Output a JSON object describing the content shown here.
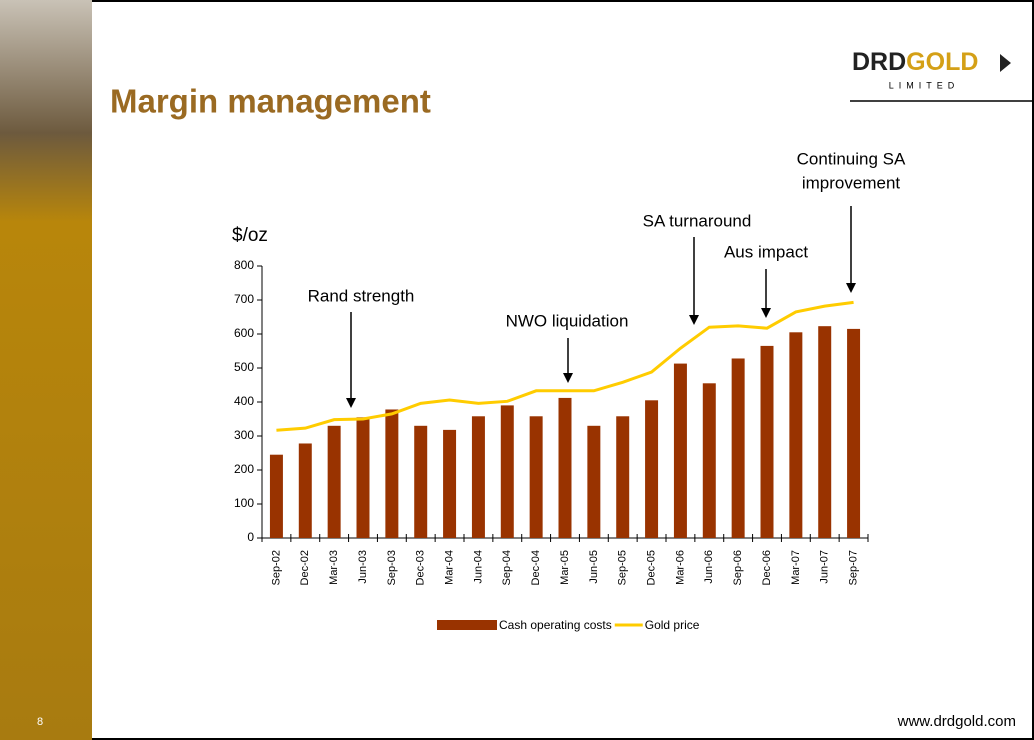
{
  "slide": {
    "title": "Margin management",
    "logo": [
      "DRD",
      "GOLD"
    ],
    "logo_sub": "LIMITED",
    "page": "8",
    "url": "www.drdgold.com"
  },
  "chart_data": {
    "type": "bar-line",
    "y_label": "$/oz",
    "categories": [
      "Sep-02",
      "Dec-02",
      "Mar-03",
      "Jun-03",
      "Sep-03",
      "Dec-03",
      "Mar-04",
      "Jun-04",
      "Sep-04",
      "Dec-04",
      "Mar-05",
      "Jun-05",
      "Sep-05",
      "Dec-05",
      "Mar-06",
      "Jun-06",
      "Sep-06",
      "Dec-06",
      "Mar-07",
      "Jun-07",
      "Sep-07"
    ],
    "series": [
      {
        "name": "Cash operating costs",
        "type": "bar",
        "color": "#993300",
        "values": [
          245,
          278,
          330,
          355,
          378,
          330,
          318,
          358,
          390,
          358,
          412,
          330,
          358,
          405,
          513,
          455,
          528,
          565,
          605,
          623,
          615
        ]
      },
      {
        "name": "Gold price",
        "type": "line",
        "color": "#ffcc00",
        "values": [
          317,
          323,
          348,
          350,
          365,
          396,
          406,
          396,
          402,
          433,
          433,
          433,
          458,
          488,
          558,
          620,
          624,
          617,
          665,
          682,
          693
        ]
      }
    ],
    "ylim": [
      0,
      800
    ],
    "yticks": [
      0,
      100,
      200,
      300,
      400,
      500,
      600,
      700,
      800
    ],
    "annotations": [
      [
        "Rand strength"
      ],
      [
        "NWO liquidation"
      ],
      [
        "SA turnaround"
      ],
      [
        "Aus impact"
      ],
      [
        "Continuing SA",
        "improvement"
      ]
    ]
  }
}
